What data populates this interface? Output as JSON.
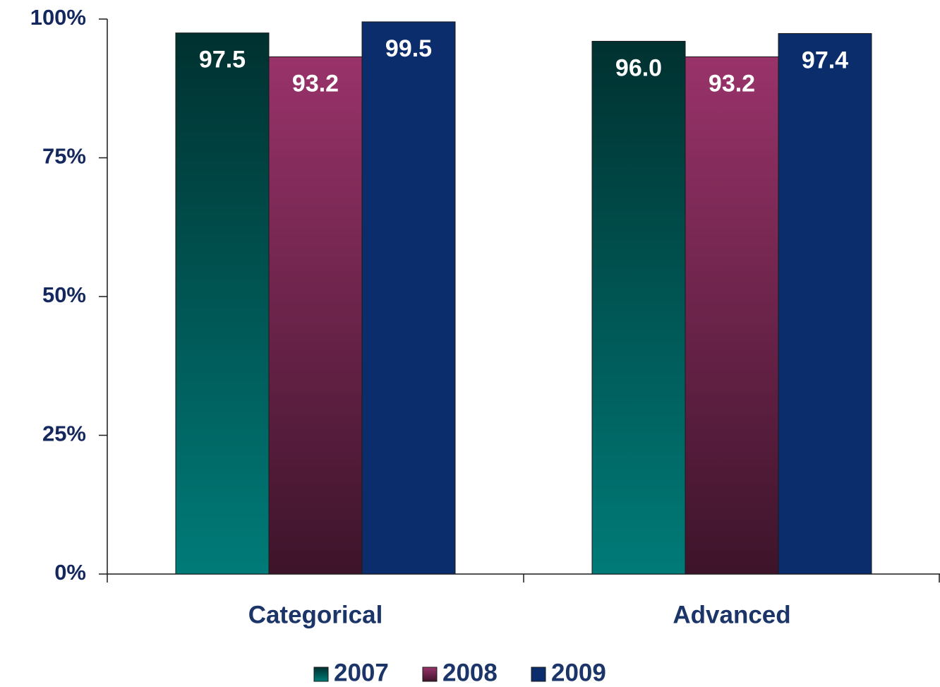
{
  "chart_data": {
    "type": "bar",
    "categories": [
      "Categorical",
      "Advanced"
    ],
    "series": [
      {
        "name": "2007",
        "color": "#007b78",
        "values": [
          97.5,
          96.0
        ],
        "value_labels": [
          "97.5",
          "96.0"
        ]
      },
      {
        "name": "2008",
        "color": "#99336a",
        "values": [
          93.2,
          93.2
        ],
        "value_labels": [
          "93.2",
          "93.2"
        ]
      },
      {
        "name": "2009",
        "color": "#0c2d6b",
        "values": [
          99.5,
          97.4
        ],
        "value_labels": [
          "99.5",
          "97.4"
        ]
      }
    ],
    "ylim": [
      0,
      100
    ],
    "yticks": [
      {
        "value": 0,
        "label": "0%"
      },
      {
        "value": 25,
        "label": "25%"
      },
      {
        "value": 50,
        "label": "50%"
      },
      {
        "value": 75,
        "label": "75%"
      },
      {
        "value": 100,
        "label": "100%"
      }
    ],
    "legend": "bottom"
  }
}
